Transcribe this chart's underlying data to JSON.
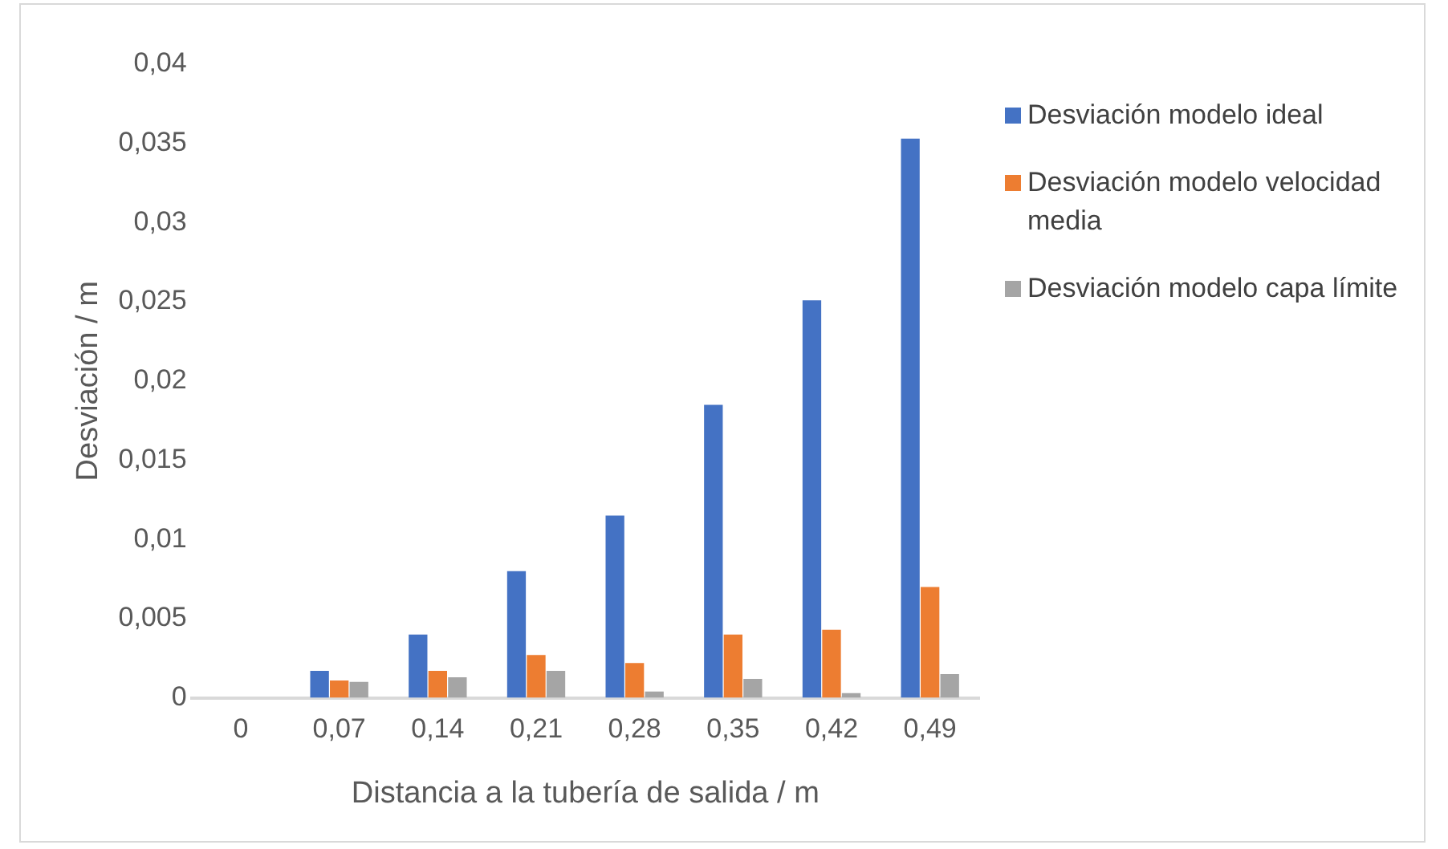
{
  "chart_data": {
    "type": "bar",
    "xlabel": "Distancia a la tubería de salida / m",
    "ylabel": "Desviación / m",
    "categories": [
      "0",
      "0,07",
      "0,14",
      "0,21",
      "0,28",
      "0,35",
      "0,42",
      "0,49"
    ],
    "series": [
      {
        "name": "Desviación modelo ideal",
        "color": "#4472c4",
        "values": [
          0,
          0.0017,
          0.004,
          0.008,
          0.0115,
          0.0185,
          0.0251,
          0.0353
        ]
      },
      {
        "name": "Desviación modelo velocidad media",
        "color": "#ed7d31",
        "values": [
          0,
          0.0011,
          0.0017,
          0.0027,
          0.0022,
          0.004,
          0.0043,
          0.007
        ]
      },
      {
        "name": "Desviación modelo capa límite",
        "color": "#a5a5a5",
        "values": [
          0,
          0.001,
          0.0013,
          0.0017,
          0.0004,
          0.0012,
          0.0003,
          0.0015
        ]
      }
    ],
    "ylim": [
      0,
      0.04
    ],
    "yticks": [
      {
        "value": 0,
        "label": "0"
      },
      {
        "value": 0.005,
        "label": "0,005"
      },
      {
        "value": 0.01,
        "label": "0,01"
      },
      {
        "value": 0.015,
        "label": "0,015"
      },
      {
        "value": 0.02,
        "label": "0,02"
      },
      {
        "value": 0.025,
        "label": "0,025"
      },
      {
        "value": 0.03,
        "label": "0,03"
      },
      {
        "value": 0.035,
        "label": "0,035"
      },
      {
        "value": 0.04,
        "label": "0,04"
      }
    ],
    "grid": false,
    "legend": "right"
  }
}
